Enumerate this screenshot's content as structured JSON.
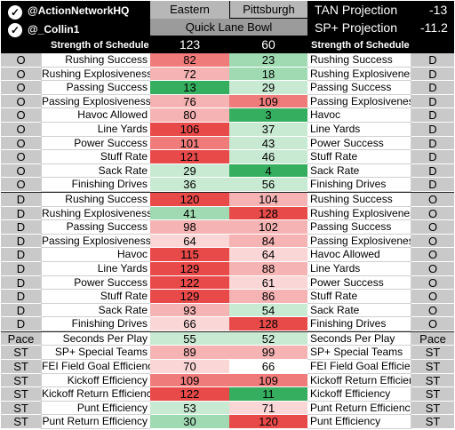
{
  "header": {
    "handle1": "@ActionNetworkHQ",
    "handle2": "@_Collin1",
    "team_a": "Eastern Michigan",
    "team_b": "Pittsburgh",
    "bowl": "Quick Lane Bowl",
    "tan_label": "TAN Projection",
    "tan_value": "-13",
    "sp_label": "SP+ Projection",
    "sp_value": "-11.2",
    "sos_label": "Strength of Schedule",
    "sos_a": "123",
    "sos_b": "60"
  },
  "colors": {
    "dark_red": "#e84a4a",
    "red": "#ef7b7b",
    "light_red": "#f5b3b3",
    "pale_red": "#fad6d6",
    "white": "#ffffff",
    "pale_green": "#c8e9d2",
    "light_green": "#9fdab3",
    "green": "#5cc27f",
    "dark_green": "#36ae5f"
  },
  "rows": [
    {
      "l": "O",
      "ml": "Rushing Success",
      "a": "82",
      "ac": "red",
      "b": "23",
      "bc": "light_green",
      "mr": "Rushing Success",
      "r": "D"
    },
    {
      "l": "O",
      "ml": "Rushing Explosiveness",
      "a": "72",
      "ac": "light_red",
      "b": "18",
      "bc": "light_green",
      "mr": "Rushing Explosiveness",
      "r": "D"
    },
    {
      "l": "O",
      "ml": "Passing Success",
      "a": "13",
      "ac": "dark_green",
      "b": "29",
      "bc": "pale_green",
      "mr": "Passing Success",
      "r": "D"
    },
    {
      "l": "O",
      "ml": "Passing Explosiveness",
      "a": "76",
      "ac": "light_red",
      "b": "109",
      "bc": "red",
      "mr": "Passing Explosiveness",
      "r": "D"
    },
    {
      "l": "O",
      "ml": "Havoc Allowed",
      "a": "80",
      "ac": "light_red",
      "b": "3",
      "bc": "dark_green",
      "mr": "Havoc",
      "r": "D"
    },
    {
      "l": "O",
      "ml": "Line Yards",
      "a": "106",
      "ac": "dark_red",
      "b": "37",
      "bc": "pale_green",
      "mr": "Line Yards",
      "r": "D"
    },
    {
      "l": "O",
      "ml": "Power Success",
      "a": "101",
      "ac": "red",
      "b": "43",
      "bc": "pale_green",
      "mr": "Power Success",
      "r": "D"
    },
    {
      "l": "O",
      "ml": "Stuff Rate",
      "a": "121",
      "ac": "dark_red",
      "b": "46",
      "bc": "pale_green",
      "mr": "Stuff Rate",
      "r": "D"
    },
    {
      "l": "O",
      "ml": "Sack Rate",
      "a": "29",
      "ac": "pale_green",
      "b": "4",
      "bc": "dark_green",
      "mr": "Sack Rate",
      "r": "D"
    },
    {
      "l": "O",
      "ml": "Finishing Drives",
      "a": "36",
      "ac": "pale_green",
      "b": "56",
      "bc": "pale_green",
      "mr": "Finishing Drives",
      "r": "D"
    },
    {
      "l": "D",
      "ml": "Rushing Success",
      "a": "120",
      "ac": "dark_red",
      "b": "104",
      "bc": "light_red",
      "mr": "Rushing Success",
      "r": "O",
      "sep": true
    },
    {
      "l": "D",
      "ml": "Rushing Explosiveness",
      "a": "41",
      "ac": "light_green",
      "b": "128",
      "bc": "dark_red",
      "mr": "Rushing Explosiveness",
      "r": "O"
    },
    {
      "l": "D",
      "ml": "Passing Success",
      "a": "98",
      "ac": "light_red",
      "b": "102",
      "bc": "light_red",
      "mr": "Passing Success",
      "r": "O"
    },
    {
      "l": "D",
      "ml": "Passing Explosiveness",
      "a": "64",
      "ac": "pale_red",
      "b": "84",
      "bc": "light_red",
      "mr": "Passing Explosiveness",
      "r": "O"
    },
    {
      "l": "D",
      "ml": "Havoc",
      "a": "115",
      "ac": "dark_red",
      "b": "64",
      "bc": "pale_red",
      "mr": "Havoc Allowed",
      "r": "O"
    },
    {
      "l": "D",
      "ml": "Line Yards",
      "a": "129",
      "ac": "dark_red",
      "b": "88",
      "bc": "light_red",
      "mr": "Line Yards",
      "r": "O"
    },
    {
      "l": "D",
      "ml": "Power Success",
      "a": "122",
      "ac": "dark_red",
      "b": "61",
      "bc": "pale_red",
      "mr": "Power Success",
      "r": "O"
    },
    {
      "l": "D",
      "ml": "Stuff Rate",
      "a": "129",
      "ac": "dark_red",
      "b": "86",
      "bc": "light_red",
      "mr": "Stuff Rate",
      "r": "O"
    },
    {
      "l": "D",
      "ml": "Sack Rate",
      "a": "93",
      "ac": "light_red",
      "b": "54",
      "bc": "pale_green",
      "mr": "Sack Rate",
      "r": "O"
    },
    {
      "l": "D",
      "ml": "Finishing Drives",
      "a": "66",
      "ac": "pale_red",
      "b": "128",
      "bc": "dark_red",
      "mr": "Finishing Drives",
      "r": "O"
    },
    {
      "l": "Pace",
      "ml": "Seconds Per Play",
      "a": "55",
      "ac": "pale_green",
      "b": "52",
      "bc": "pale_green",
      "mr": "Seconds Per Play",
      "r": "Pace",
      "sep": true
    },
    {
      "l": "ST",
      "ml": "SP+ Special Teams",
      "a": "89",
      "ac": "light_red",
      "b": "99",
      "bc": "light_red",
      "mr": "SP+ Special Teams",
      "r": "ST"
    },
    {
      "l": "ST",
      "ml": "FEI Field Goal Efficiency",
      "a": "70",
      "ac": "pale_red",
      "b": "66",
      "bc": "white",
      "mr": "FEI Field Goal Efficiency",
      "r": "ST"
    },
    {
      "l": "ST",
      "ml": "Kickoff Efficiency",
      "a": "109",
      "ac": "red",
      "b": "109",
      "bc": "red",
      "mr": "Kickoff Return Efficiency",
      "r": "ST"
    },
    {
      "l": "ST",
      "ml": "Kickoff Return Efficiency",
      "a": "122",
      "ac": "dark_red",
      "b": "11",
      "bc": "dark_green",
      "mr": "Kickoff Efficiency",
      "r": "ST"
    },
    {
      "l": "ST",
      "ml": "Punt Efficiency",
      "a": "53",
      "ac": "pale_green",
      "b": "71",
      "bc": "pale_red",
      "mr": "Punt Return Efficiency",
      "r": "ST"
    },
    {
      "l": "ST",
      "ml": "Punt Return Efficiency",
      "a": "30",
      "ac": "light_green",
      "b": "120",
      "bc": "dark_red",
      "mr": "Punt Efficiency",
      "r": "ST"
    }
  ]
}
